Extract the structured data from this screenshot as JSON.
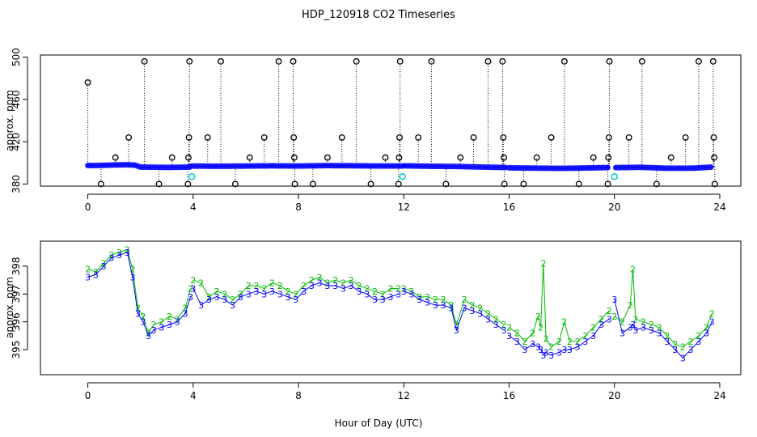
{
  "chart_data": [
    {
      "type": "scatter",
      "title": "HDP_120918  CO2 Timeseries",
      "xlabel": "",
      "ylabel": "approx. ppm",
      "xlim": [
        -1.8,
        24.8
      ],
      "ylim": [
        378,
        502
      ],
      "xticks": [
        "0",
        "4",
        "8",
        "12",
        "16",
        "20",
        "24"
      ],
      "xtick_values": [
        0,
        4,
        8,
        12,
        16,
        20,
        24
      ],
      "yticks": [
        "380",
        "420",
        "460",
        "500"
      ],
      "ytick_values": [
        380,
        420,
        460,
        500
      ],
      "colors": {
        "axis": "#000000",
        "baseline": "#0000ff",
        "cal": "#00cccc",
        "spike": "#000000",
        "series2": "#00bb00"
      },
      "series": [
        {
          "name": "baseline",
          "segments": [
            {
              "x": [
                0.0,
                0.5,
                1.0,
                1.5,
                1.8,
                2.0,
                3.0,
                3.9
              ],
              "y": [
                397.5,
                397.6,
                398.0,
                398.2,
                397.8,
                396.0,
                395.7,
                396.0
              ]
            },
            {
              "x": [
                3.95,
                5.0,
                6.0,
                7.0,
                8.0,
                9.0,
                10.0,
                11.0,
                12.0
              ],
              "y": [
                397.0,
                396.8,
                397.0,
                397.2,
                397.0,
                397.4,
                397.3,
                397.0,
                397.0
              ]
            },
            {
              "x": [
                12.05,
                13.0,
                14.0,
                15.0,
                15.9
              ],
              "y": [
                397.2,
                396.8,
                396.6,
                396.0,
                395.6
              ]
            },
            {
              "x": [
                16.0,
                17.0,
                18.0,
                19.0,
                19.8
              ],
              "y": [
                395.3,
                395.0,
                394.8,
                395.2,
                395.6
              ]
            },
            {
              "x": [
                20.05,
                21.0,
                22.0,
                23.0,
                23.7
              ],
              "y": [
                395.5,
                395.8,
                394.9,
                395.0,
                396.0
              ]
            }
          ]
        },
        {
          "name": "cal",
          "x": [
            3.95,
            11.95,
            20.0
          ],
          "y": [
            387,
            387,
            387
          ]
        },
        {
          "name": "spikes",
          "points": [
            [
              0.0,
              476
            ],
            [
              0.5,
              380
            ],
            [
              1.05,
              405
            ],
            [
              1.55,
              424
            ],
            [
              2.15,
              496
            ],
            [
              2.7,
              380
            ],
            [
              3.2,
              405
            ],
            [
              3.8,
              380
            ],
            [
              3.82,
              405
            ],
            [
              3.84,
              424
            ],
            [
              3.86,
              496
            ],
            [
              4.55,
              424
            ],
            [
              5.05,
              496
            ],
            [
              5.6,
              380
            ],
            [
              6.15,
              405
            ],
            [
              6.7,
              424
            ],
            [
              7.25,
              496
            ],
            [
              7.8,
              496
            ],
            [
              7.82,
              424
            ],
            [
              7.84,
              405
            ],
            [
              7.86,
              380
            ],
            [
              8.55,
              380
            ],
            [
              9.1,
              405
            ],
            [
              9.65,
              424
            ],
            [
              10.2,
              496
            ],
            [
              10.75,
              380
            ],
            [
              11.3,
              405
            ],
            [
              11.8,
              380
            ],
            [
              11.82,
              405
            ],
            [
              11.84,
              424
            ],
            [
              11.86,
              496
            ],
            [
              12.55,
              424
            ],
            [
              13.05,
              496
            ],
            [
              13.6,
              380
            ],
            [
              14.15,
              405
            ],
            [
              14.65,
              424
            ],
            [
              15.2,
              496
            ],
            [
              15.75,
              496
            ],
            [
              15.78,
              424
            ],
            [
              15.8,
              405
            ],
            [
              15.82,
              380
            ],
            [
              16.55,
              380
            ],
            [
              17.05,
              405
            ],
            [
              17.6,
              424
            ],
            [
              18.1,
              496
            ],
            [
              18.65,
              380
            ],
            [
              19.2,
              405
            ],
            [
              19.75,
              380
            ],
            [
              19.77,
              405
            ],
            [
              19.79,
              424
            ],
            [
              19.81,
              496
            ],
            [
              20.55,
              424
            ],
            [
              21.05,
              496
            ],
            [
              21.6,
              380
            ],
            [
              22.15,
              405
            ],
            [
              22.7,
              424
            ],
            [
              23.2,
              496
            ],
            [
              23.75,
              496
            ],
            [
              23.77,
              424
            ],
            [
              23.79,
              405
            ],
            [
              23.81,
              380
            ]
          ]
        }
      ]
    },
    {
      "type": "line",
      "title": "",
      "xlabel": "Hour of Day (UTC)",
      "ylabel": "approx. ppm",
      "xlim": [
        -1.8,
        24.8
      ],
      "ylim": [
        394.1,
        398.9
      ],
      "xticks": [
        "0",
        "4",
        "8",
        "12",
        "16",
        "20",
        "24"
      ],
      "xtick_values": [
        0,
        4,
        8,
        12,
        16,
        20,
        24
      ],
      "yticks": [
        "395",
        "396",
        "397",
        "398"
      ],
      "ytick_values": [
        395,
        396,
        397,
        398
      ],
      "markers": [
        "2",
        "3"
      ],
      "series": [
        {
          "name": "2",
          "color": "#00bb00",
          "segments": [
            {
              "x": [
                0.0,
                0.3,
                0.6,
                0.9,
                1.2,
                1.5,
                1.7,
                1.9,
                2.1,
                2.3,
                2.5,
                2.8,
                3.1,
                3.4,
                3.7,
                3.9
              ],
              "y": [
                397.9,
                397.8,
                398.1,
                398.4,
                398.5,
                398.6,
                397.9,
                396.5,
                396.2,
                395.6,
                395.9,
                396.0,
                396.2,
                396.1,
                396.5,
                397.2
              ]
            },
            {
              "x": [
                4.0,
                4.3,
                4.6,
                4.9,
                5.2,
                5.5,
                5.8,
                6.1,
                6.4,
                6.7,
                7.0,
                7.3,
                7.6,
                7.9,
                8.2,
                8.5,
                8.8,
                9.1,
                9.4,
                9.7,
                10.0,
                10.3,
                10.6,
                10.9,
                11.2,
                11.5,
                11.8
              ],
              "y": [
                397.5,
                397.4,
                396.9,
                397.1,
                397.0,
                396.8,
                397.0,
                397.3,
                397.3,
                397.2,
                397.4,
                397.3,
                397.1,
                397.0,
                397.3,
                397.5,
                397.6,
                397.4,
                397.5,
                397.4,
                397.5,
                397.3,
                397.2,
                397.1,
                397.0,
                397.2,
                397.2
              ]
            },
            {
              "x": [
                12.0,
                12.3,
                12.6,
                12.9,
                13.2,
                13.5,
                13.8,
                14.0,
                14.3,
                14.6,
                14.9,
                15.2,
                15.5,
                15.8
              ],
              "y": [
                397.2,
                397.1,
                396.9,
                396.9,
                396.8,
                396.8,
                396.6,
                395.9,
                396.8,
                396.6,
                396.5,
                396.3,
                396.1,
                395.9
              ]
            },
            {
              "x": [
                16.0,
                16.3,
                16.6,
                16.9,
                17.1,
                17.2,
                17.3,
                17.4,
                17.6,
                17.9,
                18.1,
                18.3,
                18.6,
                18.9,
                19.2,
                19.5,
                19.8
              ],
              "y": [
                395.8,
                395.6,
                395.3,
                395.6,
                396.2,
                395.8,
                398.1,
                395.4,
                395.1,
                395.3,
                396.0,
                395.3,
                395.3,
                395.5,
                395.8,
                396.1,
                396.4
              ]
            },
            {
              "x": [
                20.0,
                20.3,
                20.6,
                20.7,
                20.8,
                21.1,
                21.4,
                21.7,
                22.0,
                22.3,
                22.6,
                22.9,
                23.2,
                23.5,
                23.7
              ],
              "y": [
                396.2,
                396.0,
                396.6,
                397.9,
                396.1,
                396.0,
                395.9,
                395.8,
                395.5,
                395.2,
                395.1,
                395.3,
                395.5,
                395.8,
                396.3
              ]
            }
          ]
        },
        {
          "name": "3",
          "color": "#0000ff",
          "segments": [
            {
              "x": [
                0.0,
                0.3,
                0.6,
                0.9,
                1.2,
                1.5,
                1.7,
                1.9,
                2.1,
                2.3,
                2.5,
                2.8,
                3.1,
                3.4,
                3.7,
                3.9
              ],
              "y": [
                397.6,
                397.7,
                398.0,
                398.3,
                398.4,
                398.5,
                397.6,
                396.3,
                396.0,
                395.5,
                395.7,
                395.8,
                395.9,
                396.0,
                396.3,
                396.9
              ]
            },
            {
              "x": [
                4.0,
                4.3,
                4.6,
                4.9,
                5.2,
                5.5,
                5.8,
                6.1,
                6.4,
                6.7,
                7.0,
                7.3,
                7.6,
                7.9,
                8.2,
                8.5,
                8.8,
                9.1,
                9.4,
                9.7,
                10.0,
                10.3,
                10.6,
                10.9,
                11.2,
                11.5,
                11.8
              ],
              "y": [
                397.2,
                396.6,
                396.8,
                396.9,
                396.8,
                396.6,
                396.9,
                397.0,
                397.1,
                397.0,
                397.1,
                397.0,
                396.9,
                396.8,
                397.1,
                397.3,
                397.4,
                397.3,
                397.3,
                397.2,
                397.3,
                397.1,
                397.0,
                396.8,
                396.8,
                396.9,
                397.0
              ]
            },
            {
              "x": [
                12.0,
                12.3,
                12.6,
                12.9,
                13.2,
                13.5,
                13.8,
                14.0,
                14.3,
                14.6,
                14.9,
                15.2,
                15.5,
                15.8
              ],
              "y": [
                397.1,
                397.0,
                396.8,
                396.7,
                396.6,
                396.6,
                396.5,
                395.7,
                396.5,
                396.4,
                396.3,
                396.1,
                395.9,
                395.7
              ]
            },
            {
              "x": [
                16.0,
                16.3,
                16.6,
                16.9,
                17.1,
                17.2,
                17.3,
                17.4,
                17.6,
                17.9,
                18.1,
                18.3,
                18.6,
                18.9,
                19.2,
                19.5,
                19.8
              ],
              "y": [
                395.5,
                395.3,
                395.0,
                395.2,
                395.1,
                395.0,
                394.8,
                394.9,
                394.8,
                394.9,
                395.0,
                395.0,
                395.1,
                395.3,
                395.5,
                395.9,
                396.1
              ]
            },
            {
              "x": [
                20.0,
                20.3,
                20.6,
                20.7,
                20.8,
                21.1,
                21.4,
                21.7,
                22.0,
                22.3,
                22.6,
                22.9,
                23.2,
                23.5,
                23.7
              ],
              "y": [
                396.8,
                395.6,
                395.8,
                395.9,
                395.7,
                395.8,
                395.7,
                395.6,
                395.3,
                395.0,
                394.7,
                395.0,
                395.3,
                395.6,
                396.0
              ]
            }
          ]
        }
      ]
    }
  ]
}
